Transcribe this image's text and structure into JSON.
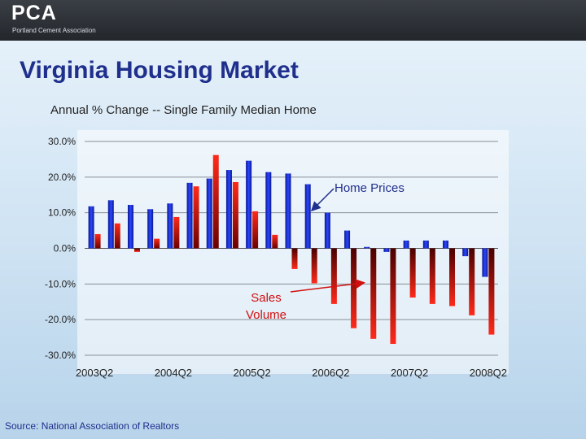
{
  "header": {
    "logo_text": "PCA",
    "logo_subtext": "Portland Cement Association",
    "title": "Virginia Housing Market",
    "subtitle": "Annual % Change -- Single Family Median Home"
  },
  "footer": {
    "source": "Source: National Association of Realtors"
  },
  "chart_data": {
    "type": "bar",
    "title": "Annual % Change -- Single Family Median Home",
    "xlabel": "",
    "ylabel": "",
    "ylim": [
      -30,
      30
    ],
    "y_ticks": [
      30,
      20,
      10,
      0,
      -10,
      -20,
      -30
    ],
    "y_tick_labels": [
      "30.0%",
      "20.0%",
      "10.0%",
      "0.0%",
      "-10.0%",
      "-20.0%",
      "-30.0%"
    ],
    "x_tick_labels": [
      "2003Q2",
      "2004Q2",
      "2005Q2",
      "2006Q2",
      "2007Q2",
      "2008Q2"
    ],
    "x_tick_positions": [
      0,
      4,
      8,
      12,
      16,
      20
    ],
    "categories": [
      "2003Q2",
      "2003Q3",
      "2003Q4",
      "2004Q1",
      "2004Q2",
      "2004Q3",
      "2004Q4",
      "2005Q1",
      "2005Q2",
      "2005Q3",
      "2005Q4",
      "2006Q1",
      "2006Q2",
      "2006Q3",
      "2006Q4",
      "2007Q1",
      "2007Q2",
      "2007Q3",
      "2007Q4",
      "2008Q1",
      "2008Q2"
    ],
    "series": [
      {
        "name": "Home Prices",
        "color": "#1b2ed6",
        "values": [
          11.8,
          13.5,
          12.2,
          11.0,
          12.6,
          18.4,
          19.6,
          22.0,
          24.6,
          21.4,
          21.0,
          18.0,
          10.0,
          5.0,
          0.4,
          -1.0,
          2.2,
          2.2,
          2.2,
          -2.2,
          -8.0
        ]
      },
      {
        "name": "Sales Volume",
        "color": "#d21010",
        "values": [
          4.0,
          7.0,
          -1.0,
          2.7,
          8.8,
          17.4,
          26.2,
          18.6,
          10.4,
          3.8,
          -5.8,
          -9.8,
          -15.6,
          -22.4,
          -25.4,
          -26.8,
          -13.8,
          -15.6,
          -16.2,
          -18.8,
          -24.2
        ]
      }
    ],
    "annotations": [
      {
        "text": "Home Prices",
        "color": "#1f2f8c"
      },
      {
        "text": "Sales Volume",
        "color": "#d21010",
        "lines": [
          "Sales",
          "Volume"
        ]
      }
    ],
    "grid": "horizontal"
  }
}
